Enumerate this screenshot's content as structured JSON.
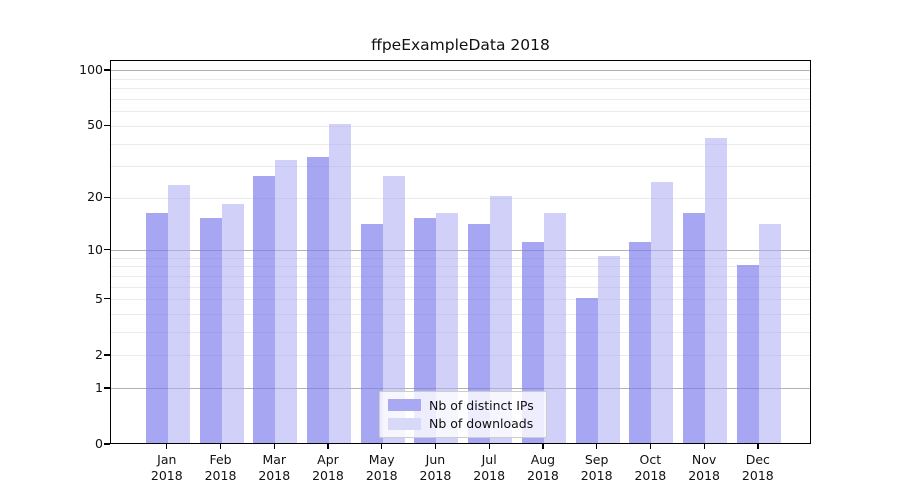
{
  "title": "ffpeExampleData 2018",
  "chart_data": {
    "type": "bar",
    "title": "ffpeExampleData 2018",
    "categories": [
      "Jan",
      "Feb",
      "Mar",
      "Apr",
      "May",
      "Jun",
      "Jul",
      "Aug",
      "Sep",
      "Oct",
      "Nov",
      "Dec"
    ],
    "category_year": "2018",
    "series": [
      {
        "name": "Nb of distinct IPs",
        "color": "#a9a9f3",
        "values": [
          16,
          15,
          26,
          33,
          14,
          15,
          14,
          11,
          5,
          11,
          16,
          8
        ]
      },
      {
        "name": "Nb of downloads",
        "color": "#d8d8f9",
        "values": [
          23,
          18,
          32,
          50,
          26,
          16,
          20,
          16,
          9,
          24,
          42,
          14
        ]
      }
    ],
    "xlabel": "",
    "ylabel": "",
    "y_scale": "log10(1+value)",
    "y_tick_values": [
      0,
      1,
      2,
      5,
      10,
      20,
      50,
      100
    ],
    "y_major_gridlines": [
      1,
      10,
      100
    ],
    "y_minor_gridlines": [
      2,
      3,
      4,
      5,
      6,
      7,
      8,
      9,
      20,
      30,
      40,
      50,
      60,
      70,
      80,
      90
    ],
    "ylim": [
      0,
      113
    ],
    "grid": "on",
    "legend_position": "inside-bottom-center",
    "colors": {
      "axis": "#000000",
      "grid_major": "#b2b2b2",
      "grid_minor": "#ebebeb",
      "text": "#111111"
    }
  }
}
